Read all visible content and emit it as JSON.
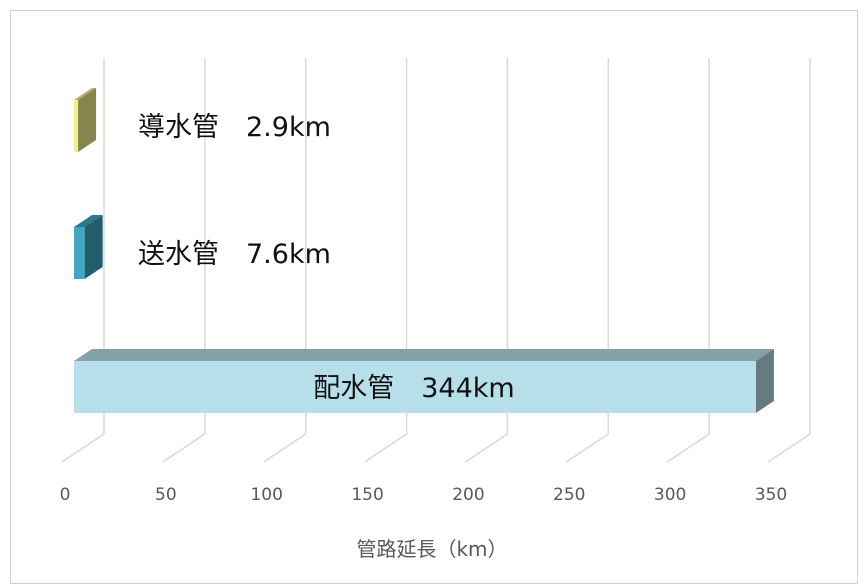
{
  "chart_data": {
    "type": "bar",
    "orientation": "horizontal",
    "style": "3d",
    "categories": [
      "導水管",
      "送水管",
      "配水管"
    ],
    "values": [
      2.9,
      7.6,
      344
    ],
    "unit": "km",
    "data_labels": [
      "導水管　2.9km",
      "送水管　7.6km",
      "配水管　344km"
    ],
    "colors": [
      "#f2f28c",
      "#3fa7c2",
      "#b7dfea"
    ],
    "xlabel": "管路延長（km）",
    "xlim": [
      0,
      350
    ],
    "xticks": [
      "0",
      "50",
      "100",
      "150",
      "200",
      "250",
      "300",
      "350"
    ],
    "grid": true,
    "legend": false
  }
}
